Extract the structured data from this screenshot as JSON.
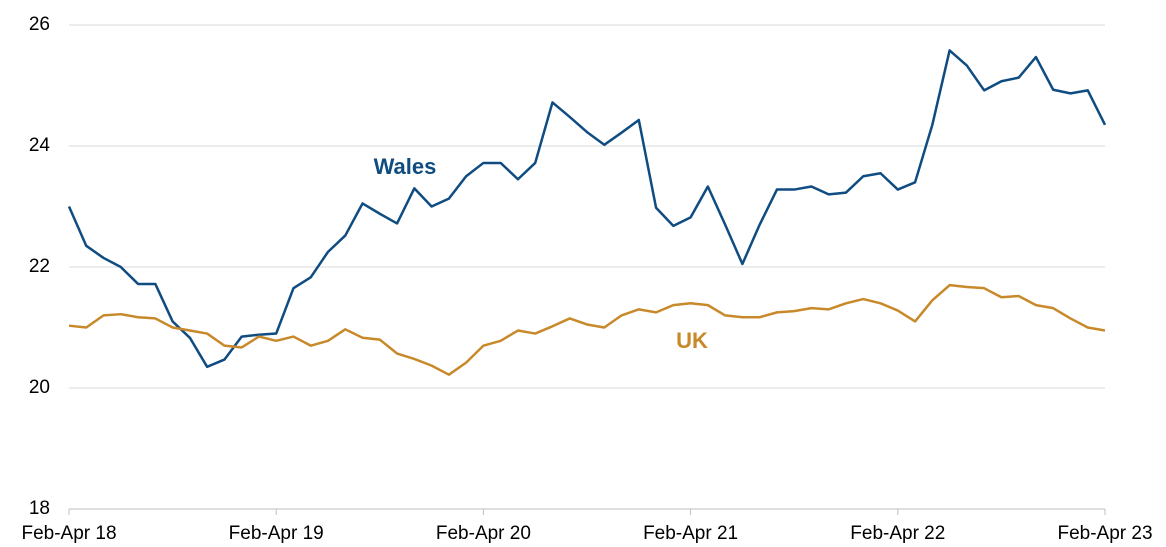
{
  "chart_data": {
    "type": "line",
    "categories": [
      "Feb-Apr 18",
      null,
      null,
      null,
      null,
      null,
      null,
      null,
      null,
      null,
      null,
      null,
      "Feb-Apr 19",
      null,
      null,
      null,
      null,
      null,
      null,
      null,
      null,
      null,
      null,
      null,
      "Feb-Apr 20",
      null,
      null,
      null,
      null,
      null,
      null,
      null,
      null,
      null,
      null,
      null,
      "Feb-Apr 21",
      null,
      null,
      null,
      null,
      null,
      null,
      null,
      null,
      null,
      null,
      null,
      "Feb-Apr 22",
      null,
      null,
      null,
      null,
      null,
      null,
      null,
      null,
      null,
      null,
      null,
      "Feb-Apr 23"
    ],
    "series": [
      {
        "name": "Wales",
        "color": "#0f4c81",
        "values": [
          23.0,
          22.35,
          22.15,
          22.0,
          21.72,
          21.72,
          21.1,
          20.83,
          20.35,
          20.47,
          20.85,
          20.88,
          20.9,
          21.65,
          21.83,
          22.25,
          22.52,
          23.05,
          22.88,
          22.72,
          23.3,
          23.0,
          23.13,
          23.5,
          23.72,
          23.72,
          23.45,
          23.72,
          24.72,
          24.48,
          24.23,
          24.02,
          24.22,
          24.43,
          22.98,
          22.68,
          22.82,
          23.33,
          22.7,
          22.05,
          22.7,
          23.28,
          23.28,
          23.33,
          23.2,
          23.23,
          23.5,
          23.55,
          23.28,
          23.4,
          24.35,
          25.58,
          25.33,
          24.92,
          25.07,
          25.13,
          25.47,
          24.93,
          24.87,
          24.92,
          24.35
        ]
      },
      {
        "name": "UK",
        "color": "#c8892a",
        "values": [
          21.03,
          21.0,
          21.2,
          21.22,
          21.17,
          21.15,
          21.0,
          20.95,
          20.9,
          20.7,
          20.67,
          20.85,
          20.78,
          20.85,
          20.7,
          20.78,
          20.97,
          20.83,
          20.8,
          20.57,
          20.48,
          20.37,
          20.22,
          20.42,
          20.7,
          20.78,
          20.95,
          20.9,
          21.02,
          21.15,
          21.05,
          21.0,
          21.2,
          21.3,
          21.25,
          21.37,
          21.4,
          21.37,
          21.2,
          21.17,
          21.17,
          21.25,
          21.27,
          21.32,
          21.3,
          21.4,
          21.47,
          21.4,
          21.28,
          21.1,
          21.45,
          21.7,
          21.67,
          21.65,
          21.5,
          21.52,
          21.37,
          21.32,
          21.15,
          21.0,
          20.95
        ]
      }
    ],
    "ylim": [
      18,
      26
    ],
    "yticks": [
      18,
      20,
      22,
      24,
      26
    ],
    "grid": true
  }
}
